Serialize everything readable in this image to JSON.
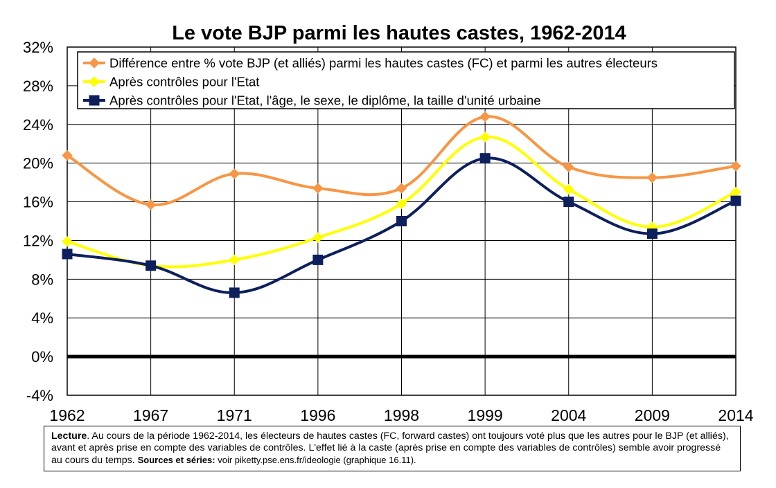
{
  "chart_data": {
    "type": "line",
    "title": "Le vote BJP parmi les hautes castes, 1962-2014",
    "categories": [
      "1962",
      "1967",
      "1971",
      "1996",
      "1998",
      "1999",
      "2004",
      "2009",
      "2014"
    ],
    "y_axis": {
      "min": -4,
      "max": 32,
      "step": 4,
      "tick_labels": [
        "-4%",
        "0%",
        "4%",
        "8%",
        "12%",
        "16%",
        "20%",
        "24%",
        "28%",
        "32%"
      ]
    },
    "grid": true,
    "zero_line_emphasized": true,
    "legend_position": "top, inside plot",
    "series": [
      {
        "name": "Différence entre % vote BJP (et alliés) parmi les hautes castes (FC) et parmi les autres électeurs",
        "color": "#F79646",
        "marker": "diamond",
        "values": [
          20.8,
          15.7,
          18.9,
          17.4,
          17.4,
          24.8,
          19.6,
          18.5,
          19.7
        ]
      },
      {
        "name": "Après contrôles pour l'Etat",
        "color": "#FFFF00",
        "marker": "diamond",
        "values": [
          11.9,
          9.4,
          10.0,
          12.3,
          15.8,
          22.7,
          17.3,
          13.4,
          17.0
        ]
      },
      {
        "name": "Après contrôles pour l'Etat, l'âge, le sexe, le diplôme, la taille d'unité urbaine",
        "color": "#0D1F5C",
        "marker": "square",
        "values": [
          10.6,
          9.4,
          6.6,
          10.0,
          14.0,
          20.5,
          16.0,
          12.7,
          16.1
        ]
      }
    ]
  },
  "note": {
    "lecture_label": "Lecture",
    "lecture_text": ". Au cours de la période 1962-2014, les électeurs de hautes castes (FC, forward castes) ont toujours voté plus que les autres pour le BJP (et alliés), avant et après prise en compte des variables de contrôles. L'effet lié à la caste (après prise en compte des variables de contrôles) semble avoir progressé au cours du temps. ",
    "sources_label": "Sources et séries:",
    "sources_text": " voir piketty.pse.ens.fr/ideologie (graphique 16.11)."
  }
}
